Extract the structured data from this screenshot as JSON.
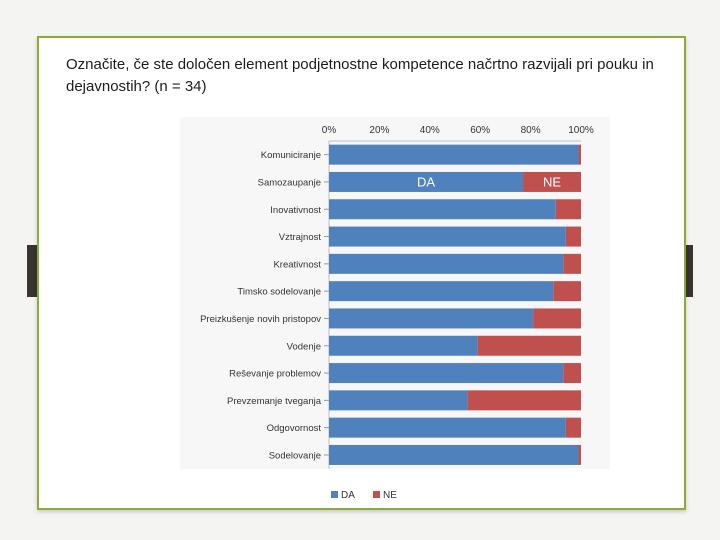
{
  "title": "Označite, če ste določen element podjetnostne kompetence načrtno razvijali pri pouku in dejavnostih? (n = 34)",
  "chart_data": {
    "type": "bar",
    "orientation": "horizontal",
    "stacked": "percent",
    "categories": [
      "Komuniciranje",
      "Samozaupanje",
      "Inovativnost",
      "Vztrajnost",
      "Kreativnost",
      "Timsko sodelovanje",
      "Preizkušenje novih pristopov",
      "Vodenje",
      "Reševanje problemov",
      "Prevzemanje tveganja",
      "Odgovornost",
      "Sodelovanje"
    ],
    "series": [
      {
        "name": "DA",
        "color": "#4f81bd",
        "values": [
          99,
          77,
          90,
          94,
          93,
          89,
          81,
          59,
          93,
          55,
          94,
          99
        ]
      },
      {
        "name": "NE",
        "color": "#c0504d",
        "values": [
          1,
          23,
          10,
          6,
          7,
          11,
          19,
          41,
          7,
          45,
          6,
          1
        ]
      }
    ],
    "x_ticks": [
      "0%",
      "20%",
      "40%",
      "60%",
      "80%",
      "100%"
    ],
    "xlim": [
      0,
      100
    ],
    "legend": "bottom",
    "annotations": [
      {
        "text": "DA",
        "category": "Samozaupanje",
        "series": "DA"
      },
      {
        "text": "NE",
        "category": "Samozaupanje",
        "series": "NE"
      }
    ]
  }
}
